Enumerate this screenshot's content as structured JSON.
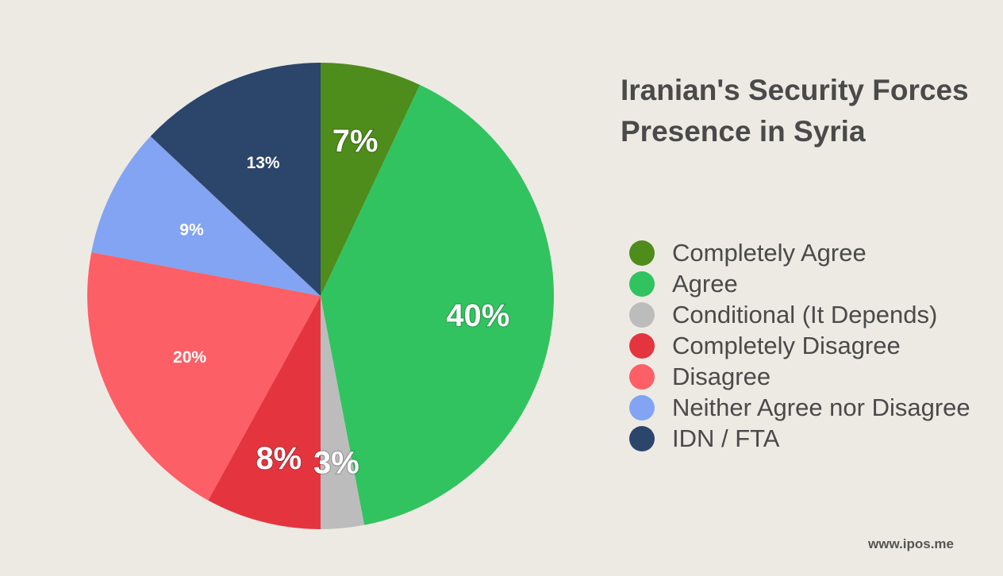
{
  "chart_data": {
    "type": "pie",
    "title": "Iranian's Security Forces Presence in Syria",
    "slices": [
      {
        "label": "Completely Agree",
        "value": 7,
        "display": "7%",
        "color": "#4e8c1c",
        "label_style": "large"
      },
      {
        "label": "Agree",
        "value": 40,
        "display": "40%",
        "color": "#31c35f",
        "label_style": "large"
      },
      {
        "label": "Conditional (It Depends)",
        "value": 3,
        "display": "3%",
        "color": "#bcbcbc",
        "label_style": "large"
      },
      {
        "label": "Completely Disagree",
        "value": 8,
        "display": "8%",
        "color": "#e4353f",
        "label_style": "large"
      },
      {
        "label": "Disagree",
        "value": 20,
        "display": "20%",
        "color": "#fd5f66",
        "label_style": "small"
      },
      {
        "label": "Neither Agree nor Disagree",
        "value": 9,
        "display": "9%",
        "color": "#82a4f2",
        "label_style": "small"
      },
      {
        "label": "IDN / FTA",
        "value": 13,
        "display": "13%",
        "color": "#2b456b",
        "label_style": "small"
      }
    ],
    "legend_position": "right"
  },
  "legend": {
    "items": [
      {
        "label": "Completely Agree",
        "color": "#4e8c1c"
      },
      {
        "label": "Agree",
        "color": "#31c35f"
      },
      {
        "label": "Conditional (It Depends)",
        "color": "#bcbcbc"
      },
      {
        "label": "Completely Disagree",
        "color": "#e4353f"
      },
      {
        "label": "Disagree",
        "color": "#fd5f66"
      },
      {
        "label": "Neither Agree nor Disagree",
        "color": "#82a4f2"
      },
      {
        "label": "IDN / FTA",
        "color": "#2b456b"
      }
    ]
  },
  "watermark": "www.ipos.me"
}
